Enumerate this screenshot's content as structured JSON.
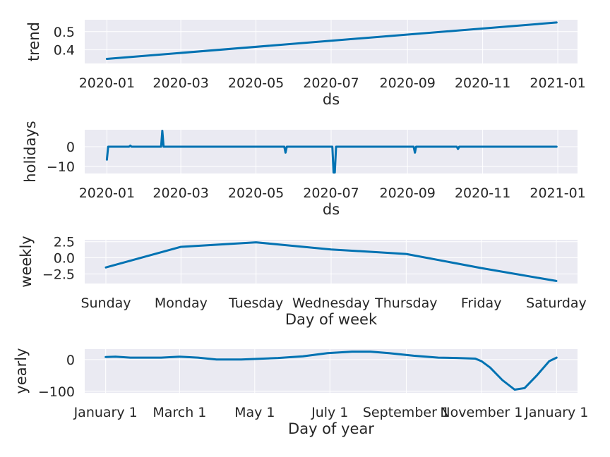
{
  "colors": {
    "series": "#0072b2",
    "panel": "#eaeaf2",
    "grid": "#ffffff",
    "text": "#262626"
  },
  "chart_data": [
    {
      "type": "line",
      "id": "trend",
      "xlabel": "ds",
      "ylabel": "trend",
      "x_ticks": [
        "2020-01",
        "2020-03",
        "2020-05",
        "2020-07",
        "2020-09",
        "2020-11",
        "2021-01"
      ],
      "y_ticks": [
        "0.4",
        "0.5"
      ],
      "y_tick_values": [
        0.4,
        0.5
      ],
      "xlim": [
        "2019-12-14",
        "2021-01-17"
      ],
      "ylim": [
        0.325,
        0.565
      ],
      "grid": true,
      "series": [
        {
          "x": [
            "2020-01-01",
            "2020-12-31"
          ],
          "y": [
            0.35,
            0.55
          ]
        }
      ]
    },
    {
      "type": "line",
      "id": "holidays",
      "xlabel": "ds",
      "ylabel": "holidays",
      "x_ticks": [
        "2020-01",
        "2020-03",
        "2020-05",
        "2020-07",
        "2020-09",
        "2020-11",
        "2021-01"
      ],
      "y_ticks": [
        "0",
        "−10"
      ],
      "y_tick_values": [
        0,
        -10
      ],
      "xlim": [
        "2019-12-14",
        "2021-01-17"
      ],
      "ylim": [
        -13.5,
        8.5
      ],
      "grid": true,
      "series": [
        {
          "x": [
            "2020-01-01",
            "2020-01-02",
            "2020-01-03",
            "2020-01-19",
            "2020-01-20",
            "2020-01-21",
            "2020-02-14",
            "2020-02-15",
            "2020-02-16",
            "2020-02-17",
            "2020-05-24",
            "2020-05-25",
            "2020-05-26",
            "2020-07-02",
            "2020-07-03",
            "2020-07-04",
            "2020-07-05",
            "2020-09-06",
            "2020-09-07",
            "2020-09-08",
            "2020-10-11",
            "2020-10-12",
            "2020-10-13",
            "2020-12-31"
          ],
          "y": [
            -6.5,
            0,
            0,
            0,
            0.5,
            0,
            0,
            8,
            0,
            0,
            0,
            -3,
            0,
            0,
            -13,
            -13,
            0,
            0,
            -3,
            0,
            0,
            -1.2,
            0,
            0
          ]
        }
      ]
    },
    {
      "type": "line",
      "id": "weekly",
      "xlabel": "Day of week",
      "ylabel": "weekly",
      "categories": [
        "Sunday",
        "Monday",
        "Tuesday",
        "Wednesday",
        "Thursday",
        "Friday",
        "Saturday"
      ],
      "values": [
        -1.5,
        1.7,
        2.4,
        1.3,
        0.6,
        -1.6,
        -3.6
      ],
      "y_ticks": [
        "2.5",
        "0.0",
        "−2.5"
      ],
      "y_tick_values": [
        2.5,
        0.0,
        -2.5
      ],
      "ylim": [
        -4.0,
        2.8
      ],
      "grid": true
    },
    {
      "type": "line",
      "id": "yearly",
      "xlabel": "Day of year",
      "ylabel": "yearly",
      "x_ticks": [
        "January 1",
        "March 1",
        "May 1",
        "July 1",
        "September 1",
        "November 1",
        "January 1"
      ],
      "x_tick_values": [
        0,
        60,
        121,
        182,
        244,
        305,
        366
      ],
      "y_ticks": [
        "0",
        "−100"
      ],
      "y_tick_values": [
        0,
        -100
      ],
      "xlim": [
        -17,
        383
      ],
      "ylim": [
        -105,
        33
      ],
      "grid": true,
      "series": [
        {
          "x": [
            0,
            8,
            20,
            45,
            60,
            75,
            90,
            110,
            140,
            160,
            180,
            200,
            215,
            230,
            250,
            270,
            285,
            300,
            305,
            312,
            322,
            332,
            340,
            350,
            360,
            366
          ],
          "y": [
            8,
            9,
            6,
            6,
            9,
            6,
            0,
            0,
            5,
            10,
            20,
            25,
            25,
            20,
            12,
            6,
            5,
            3,
            -5,
            -25,
            -65,
            -95,
            -90,
            -50,
            -5,
            6
          ]
        }
      ]
    }
  ]
}
